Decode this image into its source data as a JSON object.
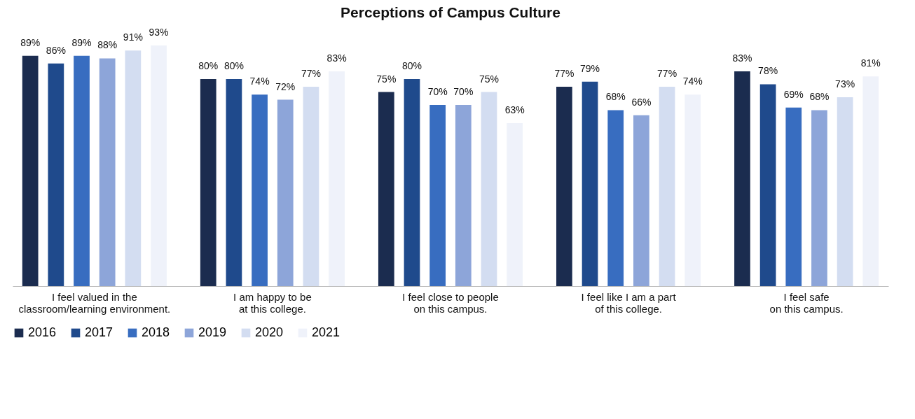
{
  "chart_data": {
    "type": "bar",
    "title": "Perceptions of Campus Culture",
    "categories": [
      "I feel valued in the\nclassroom/learning environment.",
      "I am happy to be\nat this college.",
      "I feel close to people\non this campus.",
      "I feel like I am a part\nof this college.",
      "I feel safe\non this campus."
    ],
    "series": [
      {
        "name": "2016",
        "color": "#1b2c4f",
        "values": [
          89,
          80,
          75,
          77,
          83
        ],
        "value_labels": [
          "89%",
          "80%",
          "75%",
          "77%",
          "83%"
        ]
      },
      {
        "name": "2017",
        "color": "#1f4a8c",
        "values": [
          86,
          80,
          80,
          79,
          78
        ],
        "value_labels": [
          "86%",
          "80%",
          "80%",
          "79%",
          "78%"
        ]
      },
      {
        "name": "2018",
        "color": "#386dc0",
        "values": [
          89,
          74,
          70,
          68,
          69
        ],
        "value_labels": [
          "89%",
          "74%",
          "70%",
          "68%",
          "69%"
        ]
      },
      {
        "name": "2019",
        "color": "#8da5d9",
        "values": [
          88,
          72,
          70,
          66,
          68
        ],
        "value_labels": [
          "88%",
          "72%",
          "70%",
          "66%",
          "68%"
        ]
      },
      {
        "name": "2020",
        "color": "#d3ddf1",
        "values": [
          91,
          77,
          75,
          77,
          73
        ],
        "value_labels": [
          "91%",
          "77%",
          "75%",
          "77%",
          "73%"
        ]
      },
      {
        "name": "2021",
        "color": "#eff2fa",
        "values": [
          93,
          83,
          63,
          74,
          81
        ],
        "value_labels": [
          "93%",
          "83%",
          "63%",
          "74%",
          "81%"
        ]
      }
    ],
    "legend": "bottom",
    "grid": false
  }
}
